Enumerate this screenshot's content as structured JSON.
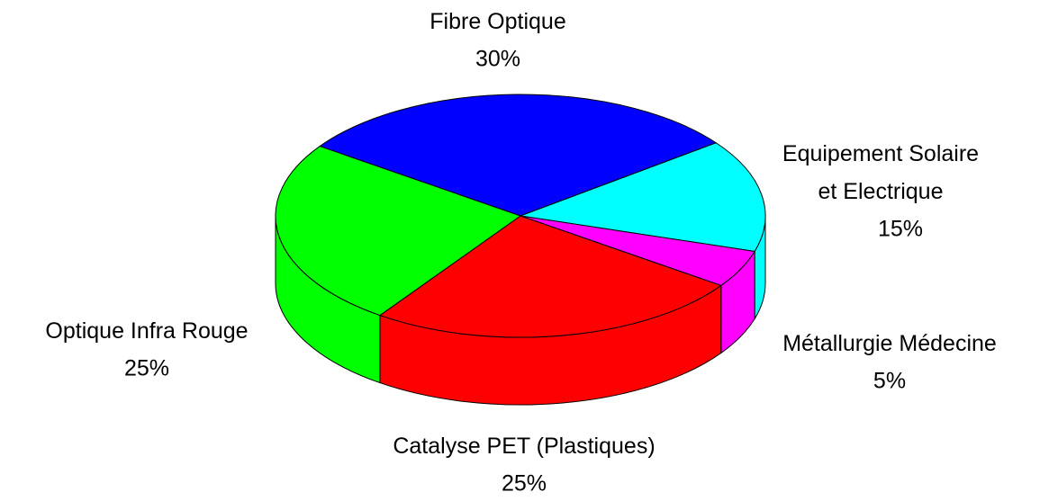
{
  "chart_data": {
    "type": "pie3d",
    "categories": [
      "Fibre Optique",
      "Equipement Solaire\net Electrique",
      "Métallurgie Médecine",
      "Catalyse PET (Plastiques)",
      "Optique Infra Rouge"
    ],
    "values": [
      30,
      15,
      5,
      25,
      25
    ],
    "value_labels": [
      "30%",
      "15%",
      "5%",
      "25%",
      "25%"
    ],
    "colors": [
      "#0000ff",
      "#00ffff",
      "#ff00ff",
      "#ff0000",
      "#00ff00"
    ]
  }
}
